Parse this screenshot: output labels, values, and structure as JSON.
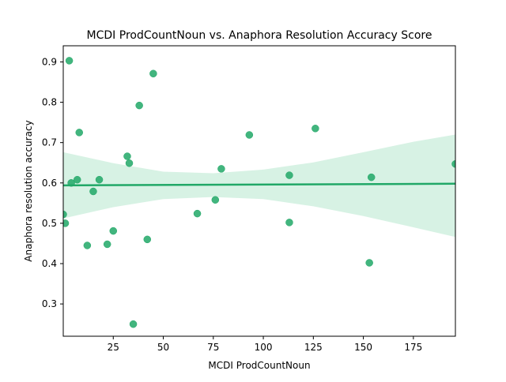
{
  "chart_data": {
    "type": "scatter",
    "title": "MCDI ProdCountNoun vs. Anaphora Resolution Accuracy Score",
    "xlabel": "MCDI ProdCountNoun",
    "ylabel": "Anaphora resolution accuracy",
    "xlim": [
      0,
      196
    ],
    "ylim": [
      0.22,
      0.94
    ],
    "xticks": [
      25,
      50,
      75,
      100,
      125,
      150,
      175
    ],
    "yticks": [
      0.3,
      0.4,
      0.5,
      0.6,
      0.7,
      0.8,
      0.9
    ],
    "grid": false,
    "legend": "none",
    "point_color": "#21a867",
    "line_color": "#21a867",
    "band_color": "#c9eedb",
    "points": [
      {
        "x": 0,
        "y": 0.522
      },
      {
        "x": 1,
        "y": 0.5
      },
      {
        "x": 3,
        "y": 0.903
      },
      {
        "x": 4,
        "y": 0.6
      },
      {
        "x": 7,
        "y": 0.608
      },
      {
        "x": 8,
        "y": 0.725
      },
      {
        "x": 12,
        "y": 0.445
      },
      {
        "x": 15,
        "y": 0.579
      },
      {
        "x": 18,
        "y": 0.608
      },
      {
        "x": 22,
        "y": 0.448
      },
      {
        "x": 25,
        "y": 0.481
      },
      {
        "x": 32,
        "y": 0.666
      },
      {
        "x": 33,
        "y": 0.649
      },
      {
        "x": 35,
        "y": 0.25
      },
      {
        "x": 38,
        "y": 0.792
      },
      {
        "x": 42,
        "y": 0.46
      },
      {
        "x": 45,
        "y": 0.871
      },
      {
        "x": 67,
        "y": 0.524
      },
      {
        "x": 76,
        "y": 0.558
      },
      {
        "x": 79,
        "y": 0.635
      },
      {
        "x": 93,
        "y": 0.719
      },
      {
        "x": 113,
        "y": 0.619
      },
      {
        "x": 113,
        "y": 0.502
      },
      {
        "x": 126,
        "y": 0.735
      },
      {
        "x": 153,
        "y": 0.402
      },
      {
        "x": 154,
        "y": 0.614
      },
      {
        "x": 196,
        "y": 0.647
      }
    ],
    "regression": {
      "x": [
        0,
        196
      ],
      "y": [
        0.594,
        0.598
      ]
    },
    "confidence_band": {
      "x": [
        0,
        25,
        50,
        75,
        100,
        125,
        150,
        175,
        196
      ],
      "upper": [
        0.676,
        0.649,
        0.628,
        0.624,
        0.633,
        0.651,
        0.676,
        0.702,
        0.72
      ],
      "lower": [
        0.512,
        0.54,
        0.56,
        0.565,
        0.56,
        0.542,
        0.518,
        0.49,
        0.466
      ]
    }
  }
}
